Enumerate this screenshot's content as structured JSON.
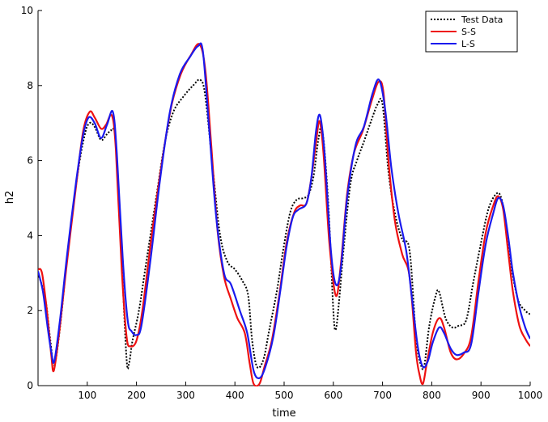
{
  "chart_data": {
    "type": "line",
    "title": "",
    "xlabel": "time",
    "ylabel": "h2",
    "xlim": [
      0,
      1000
    ],
    "ylim": [
      0,
      10
    ],
    "x_ticks": [
      100,
      200,
      300,
      400,
      500,
      600,
      700,
      800,
      900,
      1000
    ],
    "y_ticks": [
      0,
      2,
      4,
      6,
      8,
      10
    ],
    "grid": false,
    "legend_position": "top-right",
    "series": [
      {
        "name": "Test Data",
        "color": "#000000",
        "style": "dotted",
        "points": [
          [
            0,
            3.0
          ],
          [
            15,
            2.3
          ],
          [
            25,
            1.2
          ],
          [
            33,
            0.55
          ],
          [
            45,
            1.6
          ],
          [
            60,
            3.5
          ],
          [
            80,
            5.6
          ],
          [
            95,
            6.7
          ],
          [
            105,
            7.0
          ],
          [
            115,
            6.9
          ],
          [
            128,
            6.55
          ],
          [
            140,
            6.7
          ],
          [
            150,
            6.8
          ],
          [
            158,
            6.5
          ],
          [
            170,
            3.3
          ],
          [
            180,
            0.7
          ],
          [
            185,
            0.6
          ],
          [
            192,
            1.2
          ],
          [
            205,
            2.0
          ],
          [
            220,
            3.3
          ],
          [
            240,
            5.0
          ],
          [
            258,
            6.5
          ],
          [
            275,
            7.3
          ],
          [
            295,
            7.7
          ],
          [
            315,
            8.0
          ],
          [
            330,
            8.15
          ],
          [
            340,
            7.7
          ],
          [
            355,
            5.8
          ],
          [
            370,
            4.0
          ],
          [
            385,
            3.3
          ],
          [
            400,
            3.1
          ],
          [
            415,
            2.8
          ],
          [
            427,
            2.4
          ],
          [
            435,
            1.2
          ],
          [
            445,
            0.5
          ],
          [
            458,
            0.7
          ],
          [
            470,
            1.5
          ],
          [
            485,
            2.5
          ],
          [
            498,
            3.6
          ],
          [
            512,
            4.6
          ],
          [
            525,
            4.95
          ],
          [
            540,
            5.0
          ],
          [
            550,
            5.1
          ],
          [
            560,
            5.6
          ],
          [
            570,
            6.6
          ],
          [
            578,
            6.8
          ],
          [
            590,
            4.8
          ],
          [
            600,
            2.0
          ],
          [
            605,
            1.5
          ],
          [
            612,
            2.3
          ],
          [
            622,
            3.8
          ],
          [
            635,
            5.4
          ],
          [
            648,
            6.0
          ],
          [
            662,
            6.5
          ],
          [
            678,
            7.1
          ],
          [
            690,
            7.5
          ],
          [
            700,
            7.5
          ],
          [
            712,
            5.7
          ],
          [
            725,
            4.6
          ],
          [
            740,
            3.9
          ],
          [
            755,
            3.6
          ],
          [
            768,
            1.3
          ],
          [
            778,
            0.55
          ],
          [
            785,
            0.55
          ],
          [
            795,
            1.6
          ],
          [
            808,
            2.4
          ],
          [
            815,
            2.5
          ],
          [
            828,
            1.8
          ],
          [
            842,
            1.55
          ],
          [
            855,
            1.6
          ],
          [
            870,
            1.75
          ],
          [
            885,
            2.8
          ],
          [
            900,
            3.8
          ],
          [
            915,
            4.7
          ],
          [
            930,
            5.1
          ],
          [
            940,
            5.05
          ],
          [
            950,
            4.4
          ],
          [
            960,
            3.3
          ],
          [
            975,
            2.3
          ],
          [
            990,
            2.0
          ],
          [
            1000,
            1.9
          ]
        ]
      },
      {
        "name": "S-S",
        "color": "#ee1111",
        "style": "solid",
        "points": [
          [
            0,
            3.1
          ],
          [
            8,
            3.0
          ],
          [
            18,
            2.0
          ],
          [
            27,
            0.8
          ],
          [
            32,
            0.4
          ],
          [
            42,
            1.3
          ],
          [
            58,
            3.2
          ],
          [
            78,
            5.4
          ],
          [
            92,
            6.8
          ],
          [
            105,
            7.3
          ],
          [
            115,
            7.15
          ],
          [
            128,
            6.85
          ],
          [
            138,
            6.95
          ],
          [
            150,
            7.2
          ],
          [
            158,
            6.3
          ],
          [
            170,
            3.1
          ],
          [
            180,
            1.3
          ],
          [
            188,
            1.05
          ],
          [
            200,
            1.2
          ],
          [
            212,
            2.0
          ],
          [
            230,
            3.9
          ],
          [
            250,
            5.8
          ],
          [
            270,
            7.4
          ],
          [
            290,
            8.3
          ],
          [
            310,
            8.8
          ],
          [
            328,
            9.1
          ],
          [
            340,
            8.4
          ],
          [
            352,
            6.4
          ],
          [
            365,
            4.1
          ],
          [
            378,
            2.9
          ],
          [
            392,
            2.3
          ],
          [
            405,
            1.8
          ],
          [
            420,
            1.4
          ],
          [
            430,
            0.6
          ],
          [
            438,
            0.05
          ],
          [
            450,
            0.05
          ],
          [
            460,
            0.5
          ],
          [
            475,
            1.2
          ],
          [
            490,
            2.4
          ],
          [
            505,
            3.8
          ],
          [
            520,
            4.6
          ],
          [
            532,
            4.8
          ],
          [
            545,
            4.85
          ],
          [
            555,
            5.5
          ],
          [
            565,
            6.5
          ],
          [
            572,
            7.05
          ],
          [
            580,
            6.2
          ],
          [
            592,
            3.8
          ],
          [
            605,
            2.4
          ],
          [
            615,
            3.2
          ],
          [
            628,
            5.1
          ],
          [
            642,
            6.2
          ],
          [
            660,
            6.8
          ],
          [
            678,
            7.6
          ],
          [
            692,
            8.1
          ],
          [
            702,
            7.8
          ],
          [
            712,
            6.0
          ],
          [
            725,
            4.4
          ],
          [
            740,
            3.5
          ],
          [
            755,
            2.9
          ],
          [
            768,
            0.9
          ],
          [
            775,
            0.3
          ],
          [
            782,
            0.05
          ],
          [
            790,
            0.6
          ],
          [
            802,
            1.4
          ],
          [
            815,
            1.8
          ],
          [
            825,
            1.55
          ],
          [
            838,
            0.9
          ],
          [
            850,
            0.7
          ],
          [
            865,
            0.85
          ],
          [
            880,
            1.3
          ],
          [
            895,
            2.8
          ],
          [
            910,
            4.1
          ],
          [
            925,
            4.8
          ],
          [
            935,
            5.05
          ],
          [
            945,
            4.7
          ],
          [
            955,
            3.6
          ],
          [
            965,
            2.5
          ],
          [
            978,
            1.6
          ],
          [
            990,
            1.25
          ],
          [
            1000,
            1.05
          ]
        ]
      },
      {
        "name": "L-S",
        "color": "#1a1aee",
        "style": "solid",
        "points": [
          [
            0,
            3.05
          ],
          [
            10,
            2.5
          ],
          [
            20,
            1.5
          ],
          [
            27,
            0.9
          ],
          [
            33,
            0.65
          ],
          [
            45,
            1.8
          ],
          [
            60,
            3.6
          ],
          [
            78,
            5.5
          ],
          [
            92,
            6.7
          ],
          [
            103,
            7.15
          ],
          [
            115,
            7.0
          ],
          [
            128,
            6.6
          ],
          [
            140,
            6.95
          ],
          [
            152,
            7.3
          ],
          [
            160,
            6.2
          ],
          [
            172,
            3.4
          ],
          [
            182,
            1.75
          ],
          [
            190,
            1.45
          ],
          [
            200,
            1.35
          ],
          [
            210,
            1.6
          ],
          [
            228,
            3.3
          ],
          [
            248,
            5.5
          ],
          [
            268,
            7.3
          ],
          [
            288,
            8.3
          ],
          [
            308,
            8.75
          ],
          [
            325,
            9.05
          ],
          [
            335,
            8.9
          ],
          [
            348,
            6.8
          ],
          [
            362,
            4.5
          ],
          [
            378,
            3.0
          ],
          [
            392,
            2.7
          ],
          [
            410,
            2.0
          ],
          [
            425,
            1.4
          ],
          [
            438,
            0.4
          ],
          [
            450,
            0.2
          ],
          [
            462,
            0.5
          ],
          [
            478,
            1.3
          ],
          [
            492,
            2.5
          ],
          [
            505,
            3.7
          ],
          [
            518,
            4.5
          ],
          [
            530,
            4.7
          ],
          [
            545,
            4.85
          ],
          [
            555,
            5.5
          ],
          [
            565,
            6.8
          ],
          [
            573,
            7.2
          ],
          [
            582,
            6.2
          ],
          [
            595,
            3.6
          ],
          [
            605,
            2.7
          ],
          [
            615,
            3.1
          ],
          [
            628,
            5.0
          ],
          [
            645,
            6.4
          ],
          [
            662,
            6.9
          ],
          [
            680,
            7.8
          ],
          [
            693,
            8.15
          ],
          [
            705,
            7.4
          ],
          [
            718,
            5.8
          ],
          [
            732,
            4.6
          ],
          [
            748,
            3.6
          ],
          [
            760,
            2.3
          ],
          [
            772,
            1.0
          ],
          [
            782,
            0.5
          ],
          [
            792,
            0.65
          ],
          [
            802,
            1.15
          ],
          [
            815,
            1.55
          ],
          [
            825,
            1.4
          ],
          [
            838,
            1.0
          ],
          [
            850,
            0.82
          ],
          [
            865,
            0.88
          ],
          [
            880,
            1.1
          ],
          [
            895,
            2.5
          ],
          [
            910,
            3.8
          ],
          [
            925,
            4.6
          ],
          [
            935,
            5.0
          ],
          [
            945,
            4.8
          ],
          [
            955,
            4.0
          ],
          [
            965,
            3.0
          ],
          [
            978,
            2.1
          ],
          [
            990,
            1.55
          ],
          [
            1000,
            1.25
          ]
        ]
      }
    ]
  }
}
